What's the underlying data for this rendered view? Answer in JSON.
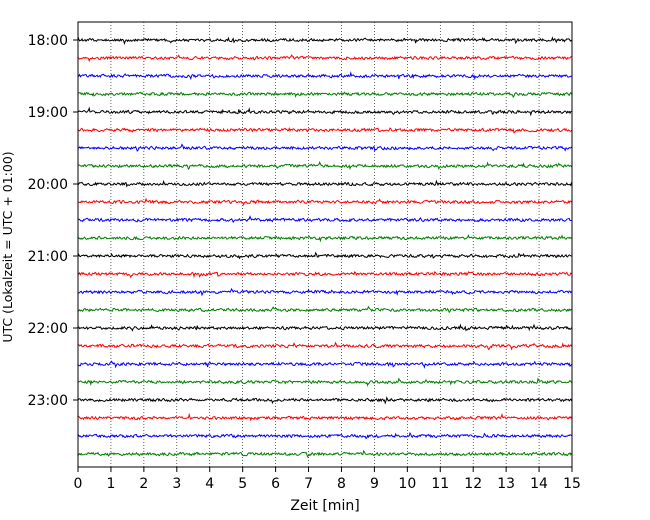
{
  "chart_data": {
    "type": "line",
    "title": "",
    "xlabel": "Zeit  [min]",
    "ylabel": "UTC (Lokalzeit = UTC + 01:00)",
    "xlim": [
      0,
      15
    ],
    "x_ticks": [
      "0",
      "1",
      "2",
      "3",
      "4",
      "5",
      "6",
      "7",
      "8",
      "9",
      "10",
      "11",
      "12",
      "13",
      "14",
      "15"
    ],
    "y_ticks": [
      "18:00",
      "19:00",
      "20:00",
      "21:00",
      "22:00",
      "23:00"
    ],
    "grid": "vertical dotted at each minute",
    "legend": "none",
    "trace_interval_min": 15,
    "trace_start": "18:00",
    "trace_end": "23:45",
    "trace_count": 24,
    "trace_color_cycle": [
      "#000000",
      "#ff0000",
      "#0000ff",
      "#008000"
    ],
    "description": "Helicorder-style seismogram: one low-amplitude noise trace per 15 minutes, colors cycling black, red, blue, green."
  }
}
